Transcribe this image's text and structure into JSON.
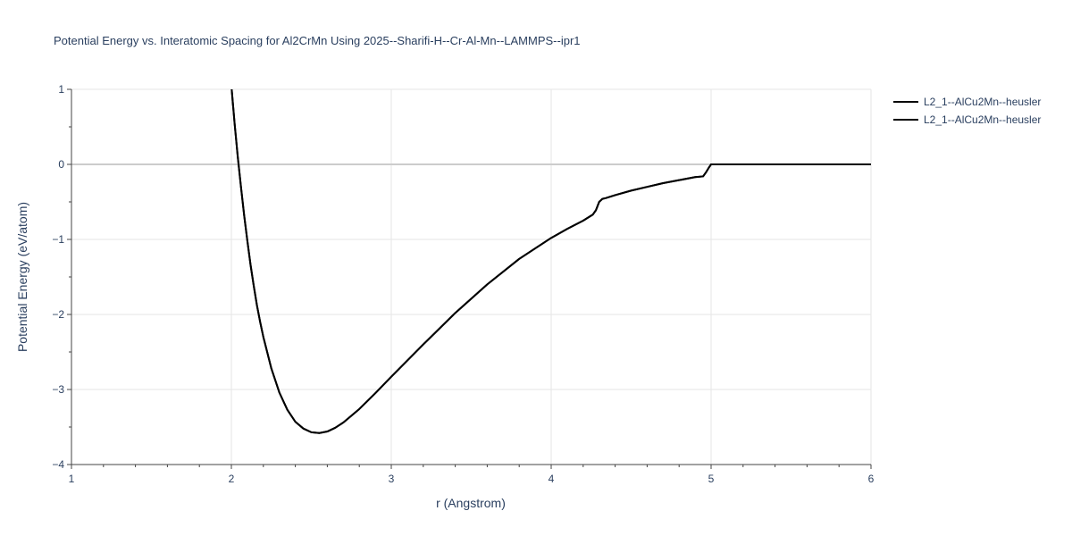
{
  "chart_data": {
    "type": "line",
    "title": "Potential Energy vs. Interatomic Spacing for Al2CrMn Using 2025--Sharifi-H--Cr-Al-Mn--LAMMPS--ipr1",
    "xlabel": "r (Angstrom)",
    "ylabel": "Potential Energy (eV/atom)",
    "xlim": [
      1,
      6
    ],
    "ylim": [
      -4,
      1
    ],
    "x_ticks": [
      "1",
      "2",
      "3",
      "4",
      "5",
      "6"
    ],
    "y_ticks": [
      "1",
      "0",
      "−1",
      "−2",
      "−3",
      "−4"
    ],
    "x_tick_values": [
      1,
      2,
      3,
      4,
      5,
      6
    ],
    "y_tick_values": [
      1,
      0,
      -1,
      -2,
      -3,
      -4
    ],
    "grid": true,
    "legend_position": "top-right",
    "series": [
      {
        "name": "L2_1--AlCu2Mn--heusler",
        "color": "#000000",
        "x": [
          2.0,
          2.02,
          2.04,
          2.06,
          2.08,
          2.1,
          2.12,
          2.14,
          2.16,
          2.18,
          2.2,
          2.25,
          2.3,
          2.35,
          2.4,
          2.45,
          2.5,
          2.55,
          2.6,
          2.65,
          2.7,
          2.8,
          2.9,
          3.0,
          3.2,
          3.4,
          3.6,
          3.8,
          4.0,
          4.1,
          4.2,
          4.26,
          4.28,
          4.3,
          4.32,
          4.34,
          4.4,
          4.5,
          4.6,
          4.7,
          4.8,
          4.9,
          4.95,
          4.97,
          4.99,
          5.0,
          5.5,
          6.0
        ],
        "y": [
          1.05,
          0.55,
          0.1,
          -0.3,
          -0.68,
          -1.02,
          -1.34,
          -1.62,
          -1.88,
          -2.1,
          -2.3,
          -2.72,
          -3.04,
          -3.27,
          -3.43,
          -3.52,
          -3.57,
          -3.58,
          -3.56,
          -3.51,
          -3.44,
          -3.26,
          -3.05,
          -2.83,
          -2.4,
          -1.98,
          -1.6,
          -1.26,
          -0.98,
          -0.86,
          -0.75,
          -0.67,
          -0.61,
          -0.5,
          -0.46,
          -0.45,
          -0.41,
          -0.35,
          -0.3,
          -0.25,
          -0.21,
          -0.17,
          -0.16,
          -0.1,
          -0.03,
          0.0,
          0.0,
          0.0
        ]
      },
      {
        "name": "L2_1--AlCu2Mn--heusler",
        "color": "#000000",
        "x": [
          2.0,
          2.02,
          2.04,
          2.06,
          2.08,
          2.1,
          2.12,
          2.14,
          2.16,
          2.18,
          2.2,
          2.25,
          2.3,
          2.35,
          2.4,
          2.45,
          2.5,
          2.55,
          2.6,
          2.65,
          2.7,
          2.8,
          2.9,
          3.0,
          3.2,
          3.4,
          3.6,
          3.8,
          4.0,
          4.1,
          4.2,
          4.26,
          4.28,
          4.3,
          4.32,
          4.34,
          4.4,
          4.5,
          4.6,
          4.7,
          4.8,
          4.9,
          4.95,
          4.97,
          4.99,
          5.0,
          5.5,
          6.0
        ],
        "y": [
          1.05,
          0.55,
          0.1,
          -0.3,
          -0.68,
          -1.02,
          -1.34,
          -1.62,
          -1.88,
          -2.1,
          -2.3,
          -2.72,
          -3.04,
          -3.27,
          -3.43,
          -3.52,
          -3.57,
          -3.58,
          -3.56,
          -3.51,
          -3.44,
          -3.26,
          -3.05,
          -2.83,
          -2.4,
          -1.98,
          -1.6,
          -1.26,
          -0.98,
          -0.86,
          -0.75,
          -0.67,
          -0.61,
          -0.5,
          -0.46,
          -0.45,
          -0.41,
          -0.35,
          -0.3,
          -0.25,
          -0.21,
          -0.17,
          -0.16,
          -0.1,
          -0.03,
          0.0,
          0.0,
          0.0
        ]
      }
    ]
  },
  "colors": {
    "text": "#2a3f5f",
    "grid": "#e5e5e5",
    "zero_line": "#cccccc",
    "axis": "#444444"
  }
}
